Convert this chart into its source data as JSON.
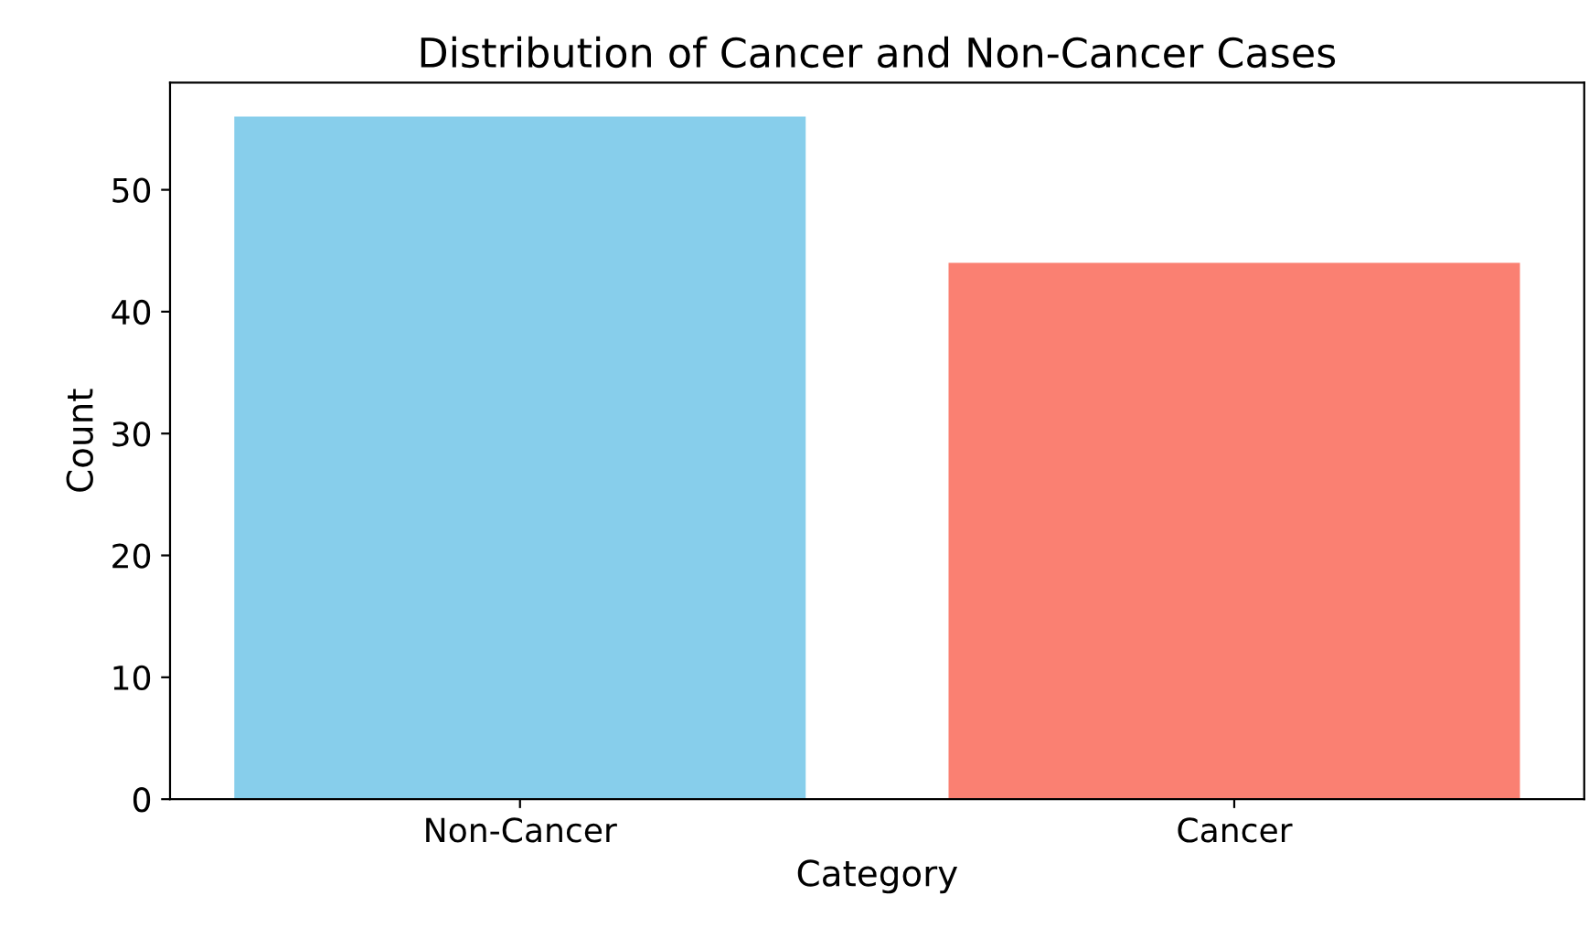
{
  "chart_data": {
    "type": "bar",
    "title": "Distribution of Cancer and Non-Cancer Cases",
    "xlabel": "Category",
    "ylabel": "Count",
    "categories": [
      "Non-Cancer",
      "Cancer"
    ],
    "values": [
      56,
      44
    ],
    "colors": [
      "#87ceeb",
      "#fa8072"
    ],
    "ylim": [
      0,
      58.8
    ],
    "yticks": [
      0,
      10,
      20,
      30,
      40,
      50
    ],
    "grid": false,
    "legend": false
  }
}
